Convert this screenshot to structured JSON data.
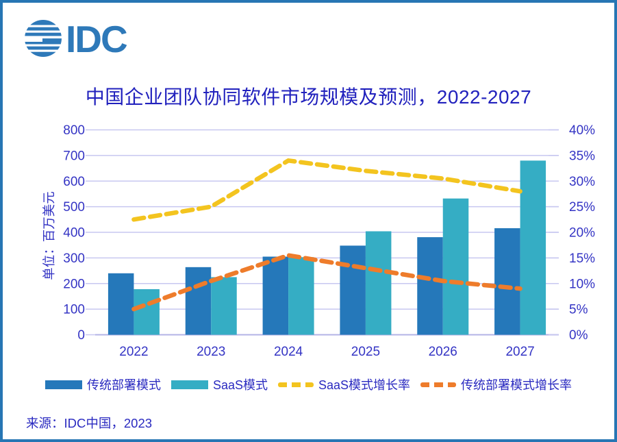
{
  "logo": {
    "text": "IDC"
  },
  "title": "中国企业团队协同软件市场规模及预测，2022-2027",
  "source": "来源：IDC中国，2023",
  "colors": {
    "frame": "#2776B4",
    "logo": "#2E79B9",
    "title_text": "#2121BD",
    "axis_text": "#3434C4",
    "grid": "#C7C7F0",
    "axis_line": "#B3B3E6"
  },
  "chart_data": {
    "type": "bar",
    "subtype": "combo-bar-line",
    "categories": [
      "2022",
      "2023",
      "2024",
      "2025",
      "2026",
      "2027"
    ],
    "bar_series": [
      {
        "name": "传统部署模式",
        "axis": "left",
        "color": "#2578BA",
        "values": [
          240,
          264,
          305,
          348,
          381,
          416
        ]
      },
      {
        "name": "SaaS模式",
        "axis": "left",
        "color": "#35ADC4",
        "values": [
          178,
          225,
          303,
          404,
          532,
          680
        ]
      }
    ],
    "line_series": [
      {
        "name": "SaaS模式增长率",
        "axis": "right",
        "color": "#F3C41F",
        "style": "dashed",
        "values_pct": [
          22.5,
          25,
          34,
          32,
          30.5,
          28
        ]
      },
      {
        "name": "传统部署模式增长率",
        "axis": "right",
        "color": "#EE7C2B",
        "style": "dashed",
        "values_pct": [
          5,
          10.5,
          15.5,
          13,
          10.5,
          9
        ]
      }
    ],
    "left_axis": {
      "title": "单位：百万美元",
      "min": 0,
      "max": 800,
      "step": 100
    },
    "right_axis": {
      "min": 0,
      "max": 40,
      "step": 5,
      "suffix": "%"
    },
    "grid": true,
    "legend_position": "bottom"
  }
}
